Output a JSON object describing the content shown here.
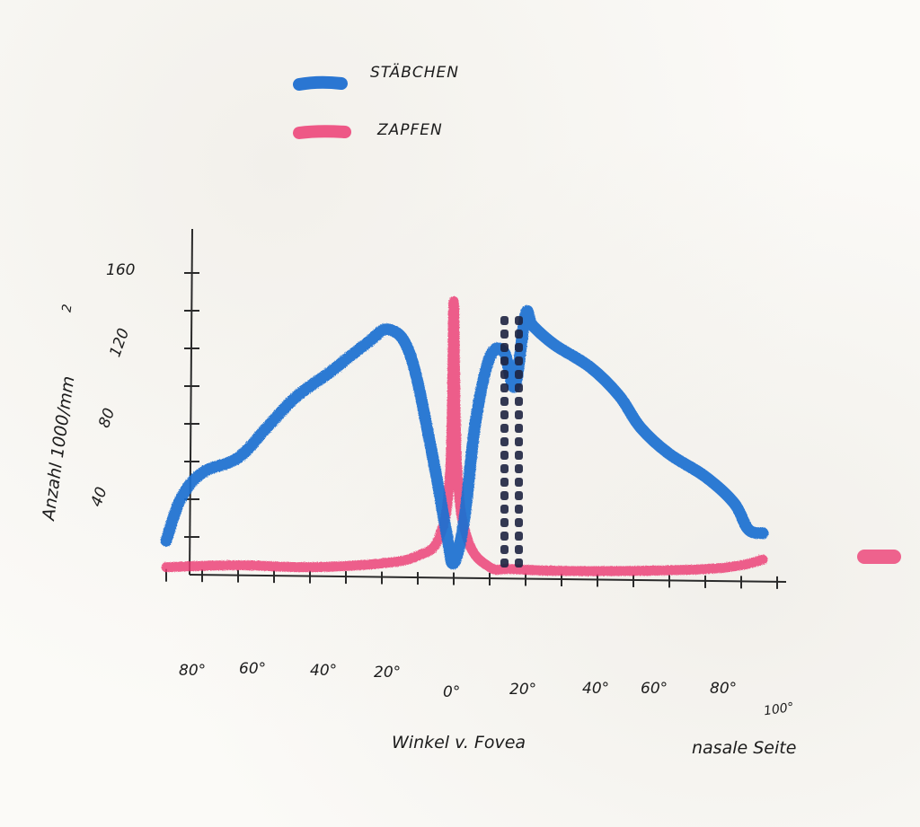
{
  "chart_data": {
    "type": "line",
    "title": "",
    "xlabel": "Winkel v. Fovea",
    "xlabel_side": "nasale Seite",
    "ylabel": "Anzahl 1000/mm²",
    "ylabel_parts": {
      "main": "Anzahl 1000/mm",
      "sup": "2"
    },
    "y_ticks": [
      "160",
      "120",
      "80",
      "40"
    ],
    "x_ticks_left": [
      "80°",
      "60°",
      "40°",
      "20°"
    ],
    "x_ticks_right": [
      "0°",
      "20°",
      "40°",
      "60°",
      "80°",
      "100°"
    ],
    "x_unit": "degrees from fovea (temporal negative, nasal positive)",
    "ylim": [
      0,
      180
    ],
    "xlim": [
      -85,
      95
    ],
    "legend_position": "top-left",
    "grid": false,
    "series": [
      {
        "name": "STÄBCHEN",
        "color": "#1f6fd1",
        "points": [
          [
            -80,
            18
          ],
          [
            -76,
            40
          ],
          [
            -70,
            54
          ],
          [
            -60,
            62
          ],
          [
            -52,
            78
          ],
          [
            -44,
            94
          ],
          [
            -34,
            108
          ],
          [
            -24,
            123
          ],
          [
            -18,
            130
          ],
          [
            -12,
            116
          ],
          [
            -6,
            64
          ],
          [
            -2,
            22
          ],
          [
            0,
            6
          ],
          [
            3,
            30
          ],
          [
            6,
            80
          ],
          [
            10,
            115
          ],
          [
            14,
            118
          ],
          [
            17,
            100
          ],
          [
            20,
            138
          ],
          [
            22,
            132
          ],
          [
            28,
            122
          ],
          [
            38,
            110
          ],
          [
            46,
            95
          ],
          [
            52,
            78
          ],
          [
            60,
            64
          ],
          [
            70,
            52
          ],
          [
            78,
            38
          ],
          [
            82,
            24
          ],
          [
            86,
            22
          ]
        ]
      },
      {
        "name": "ZAPFEN",
        "color": "#ec3d74",
        "points": [
          [
            -80,
            4
          ],
          [
            -60,
            5
          ],
          [
            -40,
            4
          ],
          [
            -20,
            6
          ],
          [
            -10,
            10
          ],
          [
            -4,
            20
          ],
          [
            -1,
            55
          ],
          [
            0,
            145
          ],
          [
            1,
            55
          ],
          [
            4,
            18
          ],
          [
            10,
            4
          ],
          [
            16,
            3
          ],
          [
            30,
            2
          ],
          [
            50,
            2
          ],
          [
            70,
            3
          ],
          [
            80,
            5
          ],
          [
            86,
            8
          ]
        ]
      }
    ],
    "annotations": [
      {
        "type": "dotted-vertical-band",
        "x_from": 14,
        "x_to": 18,
        "meaning_visible": false
      }
    ]
  }
}
